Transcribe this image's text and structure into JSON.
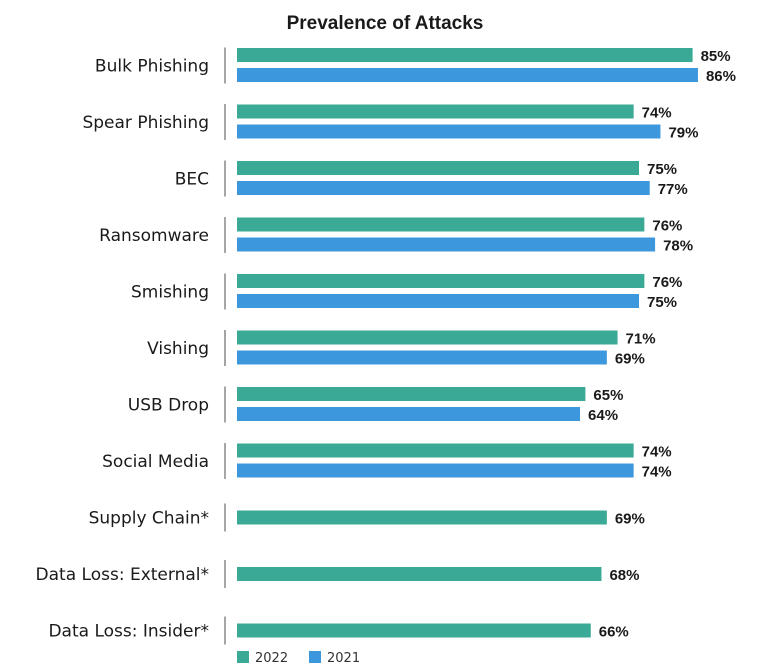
{
  "chart_data": {
    "type": "bar",
    "orientation": "horizontal",
    "title": "Prevalence of Attacks",
    "categories": [
      "Bulk Phishing",
      "Spear Phishing",
      "BEC",
      "Ransomware",
      "Smishing",
      "Vishing",
      "USB Drop",
      "Social Media",
      "Supply Chain*",
      "Data Loss: External*",
      "Data Loss: Insider*"
    ],
    "series": [
      {
        "name": "2022",
        "color": "#3aa996",
        "values": [
          85,
          74,
          75,
          76,
          76,
          71,
          65,
          74,
          69,
          68,
          66
        ]
      },
      {
        "name": "2021",
        "color": "#3d97dc",
        "values": [
          86,
          79,
          77,
          78,
          75,
          69,
          64,
          74,
          null,
          null,
          null
        ]
      }
    ],
    "value_suffix": "%",
    "xlim": [
      0,
      100
    ],
    "grid": false,
    "legend_position": "bottom"
  }
}
